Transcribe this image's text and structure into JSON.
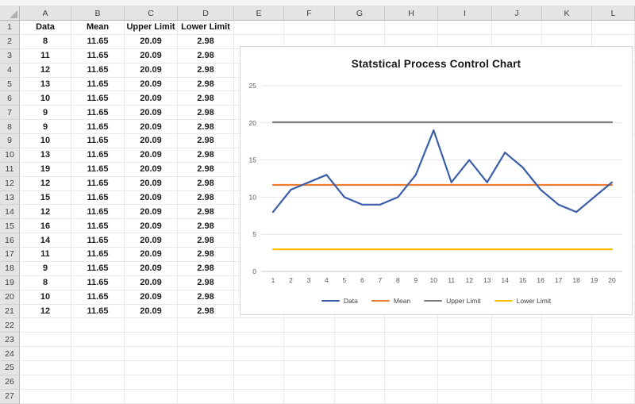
{
  "spreadsheet": {
    "column_letters": [
      "A",
      "B",
      "C",
      "D",
      "E",
      "F",
      "G",
      "H",
      "I",
      "J",
      "K",
      "L"
    ],
    "visible_row_count": 27,
    "header_row": [
      "Data",
      "Mean",
      "Upper Limit",
      "Lower Limit"
    ],
    "data_values": [
      "8",
      "11",
      "12",
      "13",
      "10",
      "9",
      "9",
      "10",
      "13",
      "19",
      "12",
      "15",
      "12",
      "16",
      "14",
      "11",
      "9",
      "8",
      "10",
      "12"
    ],
    "mean_value": "11.65",
    "upper_limit_value": "20.09",
    "lower_limit_value": "2.98"
  },
  "chart_data": {
    "type": "line",
    "title": "Statstical Process Control Chart",
    "x": [
      "1",
      "2",
      "3",
      "4",
      "5",
      "6",
      "7",
      "8",
      "9",
      "10",
      "11",
      "12",
      "13",
      "14",
      "15",
      "16",
      "17",
      "18",
      "19",
      "20"
    ],
    "yticks": [
      0,
      5,
      10,
      15,
      20,
      25
    ],
    "ylim": [
      0,
      25
    ],
    "xlabel": "",
    "ylabel": "",
    "grid": "horizontal",
    "legend_position": "bottom",
    "series": [
      {
        "name": "Data",
        "color": "#3a5ea8",
        "values": [
          8,
          11,
          12,
          13,
          10,
          9,
          9,
          10,
          13,
          19,
          12,
          15,
          12,
          16,
          14,
          11,
          9,
          8,
          10,
          12
        ]
      },
      {
        "name": "Mean",
        "color": "#ed7d31",
        "constant": 11.65
      },
      {
        "name": "Upper Limit",
        "color": "#7f7f7f",
        "constant": 20.09
      },
      {
        "name": "Lower Limit",
        "color": "#ffc000",
        "constant": 2.98
      }
    ],
    "colors": {
      "gridline": "#e3e3e3",
      "axis_line": "#c6c6c6",
      "tick_label": "#595959"
    }
  }
}
